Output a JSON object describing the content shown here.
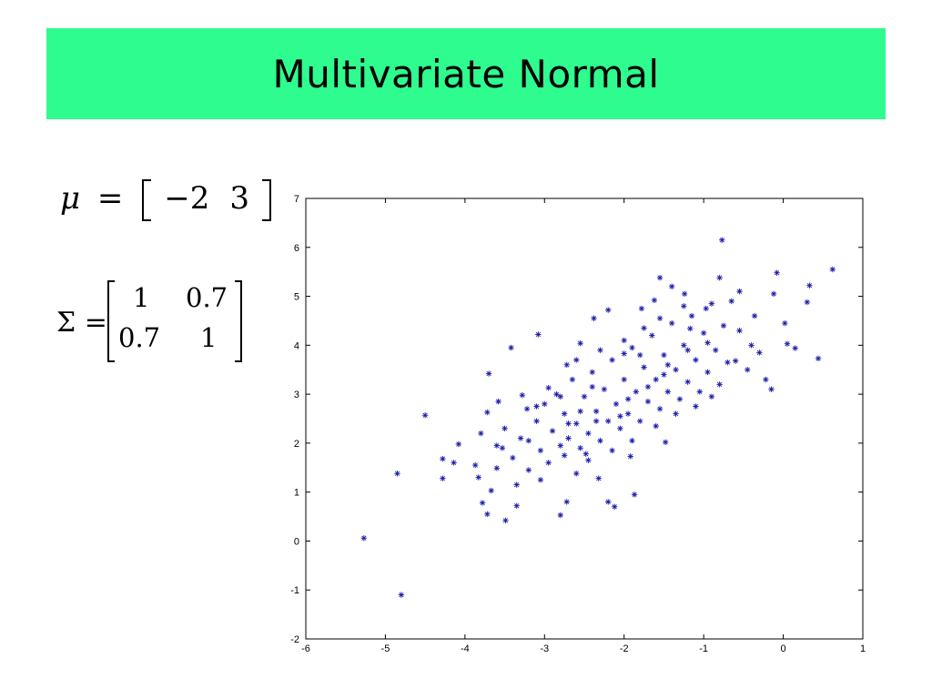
{
  "slide": {
    "title": "Multivariate Normal",
    "mu_symbol": "μ",
    "equals": "=",
    "mu_values": [
      "−2",
      "3"
    ],
    "sigma_symbol": "Σ",
    "sigma_matrix": [
      [
        "1",
        "0.7"
      ],
      [
        "0.7",
        "1"
      ]
    ]
  },
  "colors": {
    "title_band": "#2efc8e",
    "marker": "#1a1aa6",
    "axis": "#000000"
  },
  "chart_data": {
    "type": "scatter",
    "marker": "asterisk",
    "xlim": [
      -6,
      1
    ],
    "ylim": [
      -2,
      7
    ],
    "xticks": [
      -6,
      -5,
      -4,
      -3,
      -2,
      -1,
      0,
      1
    ],
    "yticks": [
      -2,
      -1,
      0,
      1,
      2,
      3,
      4,
      5,
      6,
      7
    ],
    "xtick_labels": [
      "-6",
      "-5",
      "-4",
      "-3",
      "-2",
      "-1",
      "0",
      "1"
    ],
    "ytick_labels": [
      "-2",
      "-1",
      "0",
      "1",
      "2",
      "3",
      "4",
      "5",
      "6",
      "7"
    ],
    "grid": false,
    "series": [
      {
        "points": [
          [
            -5.27,
            0.06
          ],
          [
            -4.8,
            -1.1
          ],
          [
            -4.85,
            1.38
          ],
          [
            -4.5,
            2.57
          ],
          [
            -4.28,
            1.68
          ],
          [
            -4.28,
            1.28
          ],
          [
            -4.14,
            1.6
          ],
          [
            -4.08,
            1.98
          ],
          [
            -3.87,
            1.55
          ],
          [
            -3.83,
            1.3
          ],
          [
            -3.78,
            0.78
          ],
          [
            -3.72,
            2.63
          ],
          [
            -3.72,
            0.55
          ],
          [
            -3.7,
            3.42
          ],
          [
            -3.67,
            1.03
          ],
          [
            -3.6,
            1.49
          ],
          [
            -3.58,
            2.85
          ],
          [
            -3.53,
            1.9
          ],
          [
            -3.49,
            0.42
          ],
          [
            -3.42,
            3.95
          ],
          [
            -3.35,
            0.72
          ],
          [
            -3.28,
            2.98
          ],
          [
            -3.22,
            2.7
          ],
          [
            -3.08,
            4.22
          ],
          [
            -2.95,
            3.13
          ],
          [
            -2.8,
            0.53
          ],
          [
            -2.72,
            0.8
          ],
          [
            -2.72,
            3.6
          ],
          [
            -2.6,
            1.38
          ],
          [
            -2.55,
            4.04
          ],
          [
            -2.48,
            1.78
          ],
          [
            -2.38,
            4.55
          ],
          [
            -2.32,
            1.28
          ],
          [
            -2.2,
            4.72
          ],
          [
            -2.2,
            0.8
          ],
          [
            -2.12,
            0.7
          ],
          [
            -2.0,
            3.83
          ],
          [
            -1.92,
            1.73
          ],
          [
            -1.87,
            0.95
          ],
          [
            -1.78,
            4.75
          ],
          [
            -1.62,
            4.92
          ],
          [
            -1.55,
            5.38
          ],
          [
            -1.48,
            2.02
          ],
          [
            -1.4,
            5.2
          ],
          [
            -1.24,
            5.05
          ],
          [
            -1.17,
            4.34
          ],
          [
            -0.97,
            4.75
          ],
          [
            -0.8,
            5.38
          ],
          [
            -0.77,
            6.15
          ],
          [
            -0.6,
            3.68
          ],
          [
            -0.55,
            5.1
          ],
          [
            -0.4,
            4.0
          ],
          [
            -0.36,
            4.6
          ],
          [
            -0.22,
            3.3
          ],
          [
            -0.15,
            3.1
          ],
          [
            -0.12,
            5.05
          ],
          [
            -0.08,
            5.48
          ],
          [
            0.02,
            4.45
          ],
          [
            0.05,
            4.03
          ],
          [
            0.15,
            3.94
          ],
          [
            0.3,
            4.88
          ],
          [
            0.33,
            5.22
          ],
          [
            0.44,
            3.73
          ],
          [
            0.62,
            5.55
          ],
          [
            -3.5,
            2.3
          ],
          [
            -3.4,
            1.7
          ],
          [
            -3.3,
            2.1
          ],
          [
            -3.2,
            1.45
          ],
          [
            -3.1,
            2.45
          ],
          [
            -3.05,
            1.85
          ],
          [
            -3.0,
            2.8
          ],
          [
            -2.95,
            1.6
          ],
          [
            -2.9,
            2.25
          ],
          [
            -2.85,
            3.0
          ],
          [
            -2.8,
            1.95
          ],
          [
            -2.75,
            2.6
          ],
          [
            -2.7,
            2.1
          ],
          [
            -2.65,
            3.3
          ],
          [
            -2.6,
            2.4
          ],
          [
            -2.55,
            1.9
          ],
          [
            -2.5,
            2.95
          ],
          [
            -2.45,
            2.2
          ],
          [
            -2.4,
            3.45
          ],
          [
            -2.35,
            2.65
          ],
          [
            -2.3,
            2.05
          ],
          [
            -2.25,
            3.1
          ],
          [
            -2.2,
            2.45
          ],
          [
            -2.15,
            3.7
          ],
          [
            -2.1,
            2.8
          ],
          [
            -2.05,
            2.3
          ],
          [
            -2.0,
            3.3
          ],
          [
            -1.95,
            2.6
          ],
          [
            -1.9,
            3.95
          ],
          [
            -1.85,
            3.05
          ],
          [
            -1.8,
            2.45
          ],
          [
            -1.75,
            3.55
          ],
          [
            -1.7,
            2.85
          ],
          [
            -1.65,
            4.2
          ],
          [
            -1.6,
            3.3
          ],
          [
            -1.55,
            2.7
          ],
          [
            -1.5,
            3.8
          ],
          [
            -1.45,
            3.05
          ],
          [
            -1.4,
            4.45
          ],
          [
            -1.35,
            3.5
          ],
          [
            -1.3,
            2.9
          ],
          [
            -1.25,
            4.0
          ],
          [
            -1.2,
            3.25
          ],
          [
            -1.15,
            4.6
          ],
          [
            -1.1,
            3.7
          ],
          [
            -1.05,
            3.05
          ],
          [
            -1.0,
            4.25
          ],
          [
            -0.95,
            3.45
          ],
          [
            -0.9,
            4.85
          ],
          [
            -0.85,
            3.9
          ],
          [
            -0.8,
            3.2
          ],
          [
            -0.75,
            4.4
          ],
          [
            -0.7,
            3.65
          ],
          [
            -0.65,
            4.9
          ],
          [
            -2.6,
            3.7
          ],
          [
            -2.3,
            3.9
          ],
          [
            -2.0,
            4.1
          ],
          [
            -1.75,
            4.35
          ],
          [
            -2.8,
            2.95
          ],
          [
            -3.2,
            2.05
          ],
          [
            -1.6,
            2.35
          ],
          [
            -1.35,
            2.6
          ],
          [
            -1.1,
            2.75
          ],
          [
            -0.9,
            2.95
          ],
          [
            -1.9,
            2.05
          ],
          [
            -2.15,
            1.85
          ],
          [
            -2.45,
            1.65
          ],
          [
            -2.75,
            1.75
          ],
          [
            -3.05,
            1.25
          ],
          [
            -3.35,
            1.15
          ],
          [
            -3.6,
            1.95
          ],
          [
            -3.8,
            2.2
          ],
          [
            -1.55,
            4.55
          ],
          [
            -1.25,
            4.8
          ],
          [
            -0.95,
            4.05
          ],
          [
            -0.55,
            4.3
          ],
          [
            -0.45,
            3.5
          ],
          [
            -0.3,
            3.85
          ],
          [
            -2.05,
            2.55
          ],
          [
            -1.95,
            2.9
          ],
          [
            -1.7,
            3.15
          ],
          [
            -1.5,
            3.4
          ],
          [
            -2.35,
            2.45
          ],
          [
            -2.55,
            2.65
          ],
          [
            -1.8,
            3.8
          ],
          [
            -1.45,
            3.6
          ],
          [
            -1.2,
            3.9
          ],
          [
            -2.4,
            3.15
          ],
          [
            -2.7,
            2.4
          ],
          [
            -3.1,
            2.75
          ]
        ]
      }
    ]
  }
}
